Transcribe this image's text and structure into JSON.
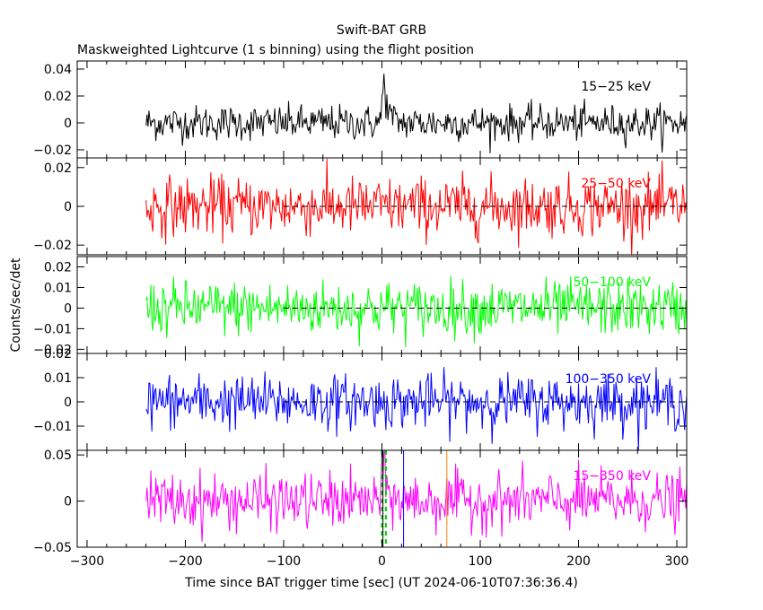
{
  "chart_data": {
    "type": "line",
    "title": "Swift-BAT GRB",
    "subtitle": "Maskweighted Lightcurve (1 s binning) using the flight position",
    "xlabel": "Time since BAT trigger time [sec] (UT 2024-06-10T07:36:36.4)",
    "ylabel": "Counts/sec/det",
    "xlim": [
      -310,
      310
    ],
    "data_xrange": [
      -240,
      310
    ],
    "x_ticks": [
      "−300",
      "−200",
      "−100",
      "0",
      "100",
      "200",
      "300"
    ],
    "x_tick_values": [
      -300,
      -200,
      -100,
      0,
      100,
      200,
      300
    ],
    "markers": [
      {
        "name": "green-dashed-1",
        "x": 0,
        "color": "#00cc00",
        "style": "dashed"
      },
      {
        "name": "green-dashed-2",
        "x": 4,
        "color": "#00cc00",
        "style": "dashed"
      },
      {
        "name": "black-line",
        "x": 1,
        "color": "#000000",
        "style": "solid"
      },
      {
        "name": "blue-line",
        "x": 22,
        "color": "#0000ff",
        "style": "solid"
      },
      {
        "name": "orange-line",
        "x": 66,
        "color": "#ff8000",
        "style": "solid"
      }
    ],
    "panels": [
      {
        "band": "15−25 keV",
        "color": "#000000",
        "ylim": [
          -0.026,
          0.046
        ],
        "yticks": [
          "0.04",
          "0.02",
          "0",
          "−0.02"
        ],
        "ytick_values": [
          0.04,
          0.02,
          0,
          -0.02
        ],
        "noise": 0.0065,
        "peak": {
          "x": 2,
          "amp": 0.03,
          "width": 4
        }
      },
      {
        "band": "25−50 keV",
        "color": "#ff0000",
        "ylim": [
          -0.025,
          0.025
        ],
        "yticks": [
          "0.02",
          "0",
          "−0.02"
        ],
        "ytick_values": [
          0.02,
          0,
          -0.02
        ],
        "noise": 0.0075,
        "peak": null
      },
      {
        "band": "50−100 keV",
        "color": "#00ff00",
        "ylim": [
          -0.022,
          0.025
        ],
        "yticks": [
          "0.02",
          "0.01",
          "0",
          "−0.01",
          "−0.02"
        ],
        "ytick_values": [
          0.02,
          0.01,
          0,
          -0.01,
          -0.02
        ],
        "noise": 0.0065,
        "peak": null
      },
      {
        "band": "100−350 keV",
        "color": "#0000ff",
        "ylim": [
          -0.02,
          0.02
        ],
        "yticks": [
          "0.02",
          "0.01",
          "0",
          "−0.01"
        ],
        "ytick_values": [
          0.02,
          0.01,
          0,
          -0.01
        ],
        "noise": 0.0055,
        "peak": null
      },
      {
        "band": "15−350 keV",
        "color": "#ff00ff",
        "ylim": [
          -0.05,
          0.055
        ],
        "yticks": [
          "0.05",
          "0",
          "−0.05"
        ],
        "ytick_values": [
          0.05,
          0,
          -0.05
        ],
        "noise": 0.015,
        "peak": {
          "x": 2,
          "amp": 0.035,
          "width": 4
        }
      }
    ]
  }
}
